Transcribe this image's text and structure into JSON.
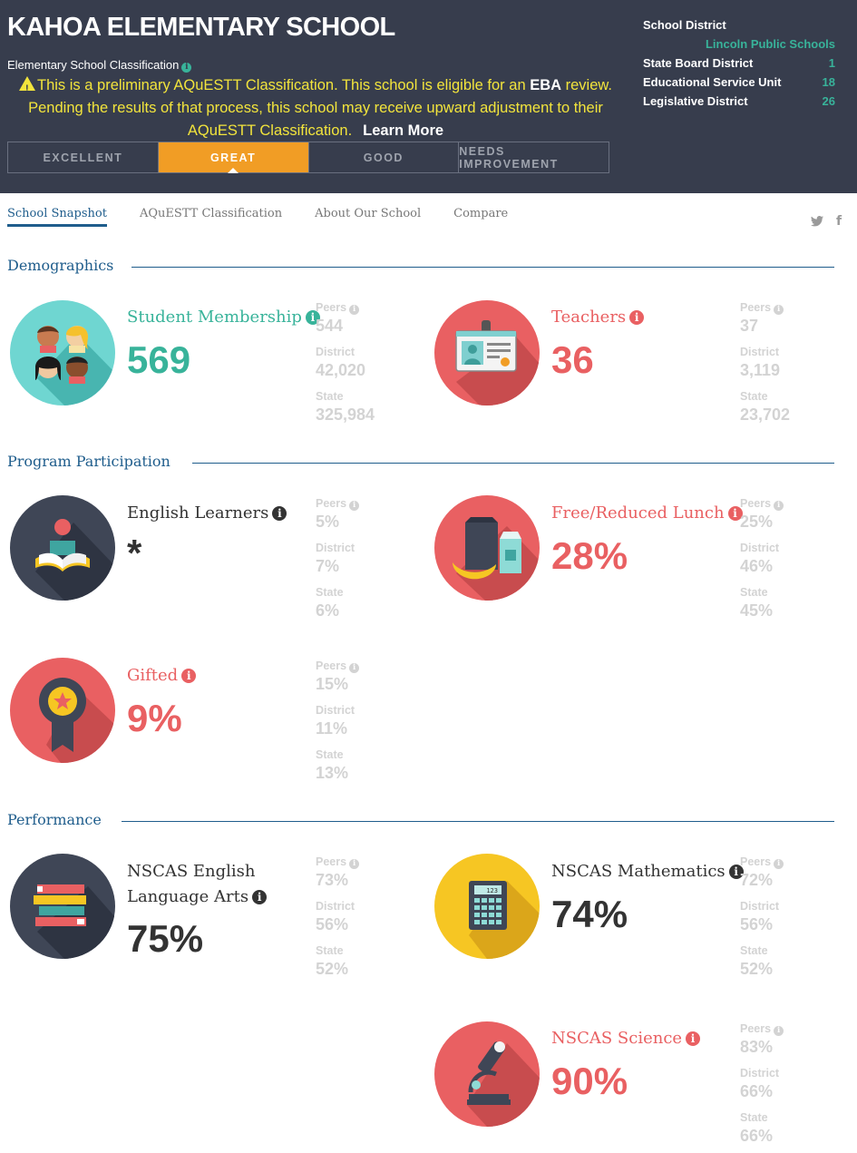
{
  "header": {
    "school_name": "KAHOA ELEMENTARY SCHOOL",
    "classification_label": "Elementary School Classification",
    "notice_part1": "This is a preliminary AQuESTT Classification. This school is eligible for an ",
    "notice_eba": "EBA",
    "notice_part2": " review. Pending the results of that process, this school may receive upward adjustment to their AQuESTT Classification.",
    "learn_more": "Learn More",
    "tiers": [
      "EXCELLENT",
      "GREAT",
      "GOOD",
      "NEEDS IMPROVEMENT"
    ],
    "active_tier": "GREAT"
  },
  "district_info": {
    "school_district_label": "School District",
    "school_district_value": "Lincoln Public Schools",
    "state_board_label": "State Board District",
    "state_board_value": "1",
    "esu_label": "Educational Service Unit",
    "esu_value": "18",
    "legislative_label": "Legislative District",
    "legislative_value": "26"
  },
  "nav": {
    "items": [
      "School Snapshot",
      "AQuESTT Classification",
      "About Our School",
      "Compare"
    ],
    "active": "School Snapshot",
    "social": [
      "twitter-icon",
      "facebook-icon"
    ],
    "twitter_glyph": "🐦",
    "facebook_glyph": "f"
  },
  "sections": {
    "demographics": "Demographics",
    "program": "Program Participation",
    "performance": "Performance"
  },
  "labels": {
    "peers": "Peers",
    "district": "District",
    "state": "State"
  },
  "stats": {
    "membership": {
      "title": "Student Membership",
      "value": "569",
      "peers": "544",
      "district": "42,020",
      "state": "325,984"
    },
    "teachers": {
      "title": "Teachers",
      "value": "36",
      "peers": "37",
      "district": "3,119",
      "state": "23,702"
    },
    "ell": {
      "title": "English Learners",
      "value": "*",
      "peers": "5%",
      "district": "7%",
      "state": "6%"
    },
    "frl": {
      "title": "Free/Reduced Lunch",
      "value": "28%",
      "peers": "25%",
      "district": "46%",
      "state": "45%"
    },
    "gifted": {
      "title": "Gifted",
      "value": "9%",
      "peers": "15%",
      "district": "11%",
      "state": "13%"
    },
    "ela": {
      "title_line1": "NSCAS English",
      "title_line2": "Language Arts",
      "value": "75%",
      "peers": "73%",
      "district": "56%",
      "state": "52%"
    },
    "math": {
      "title": "NSCAS Mathematics",
      "value": "74%",
      "peers": "72%",
      "district": "56%",
      "state": "52%"
    },
    "science": {
      "title": "NSCAS Science",
      "value": "90%",
      "peers": "83%",
      "district": "66%",
      "state": "66%"
    }
  },
  "colors": {
    "teal": "#38b39a",
    "red": "#e96062",
    "orange": "#f19d25",
    "navy": "#373d4d",
    "blue": "#1f5d8c",
    "yellow": "#f6c623"
  },
  "icons": {
    "membership": "students-faces-icon",
    "teachers": "id-badge-icon",
    "ell": "reader-book-icon",
    "frl": "lunch-bag-icon",
    "gifted": "award-ribbon-icon",
    "ela": "book-stack-icon",
    "math": "calculator-icon",
    "science": "microscope-icon"
  },
  "calculator_display": "123"
}
